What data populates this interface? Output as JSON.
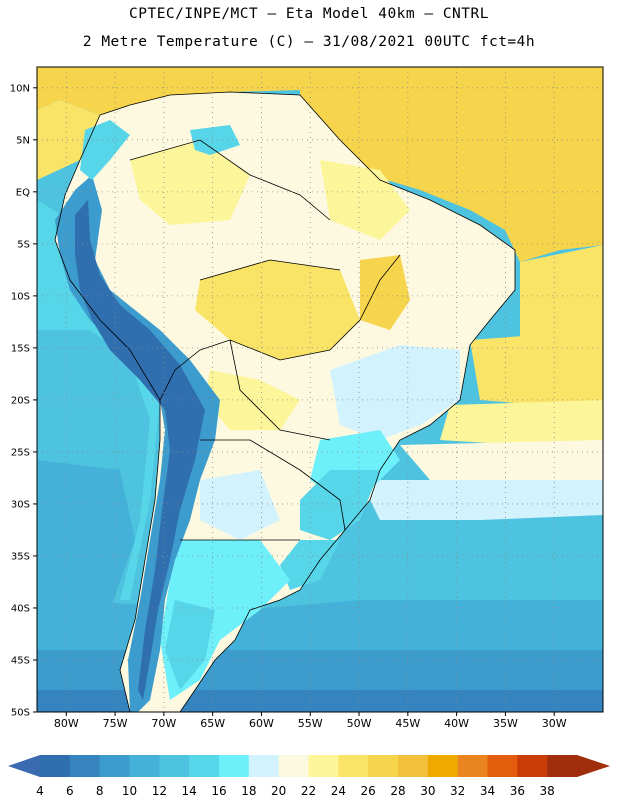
{
  "header": {
    "title_line1": "CPTEC/INPE/MCT –  Eta Model 40km – CNTRL",
    "title_line2": "2 Metre Temperature (C) – 31/08/2021 00UTC fct=4h"
  },
  "map": {
    "region": "South America",
    "lon_range": [
      -83,
      -25
    ],
    "lat_range": [
      -50,
      12
    ],
    "lat_ticks": [
      "10N",
      "5N",
      "EQ",
      "5S",
      "10S",
      "15S",
      "20S",
      "25S",
      "30S",
      "35S",
      "40S",
      "45S",
      "50S"
    ],
    "lon_ticks": [
      "80W",
      "75W",
      "70W",
      "65W",
      "60W",
      "55W",
      "50W",
      "45W",
      "40W",
      "35W",
      "30W"
    ]
  },
  "legend": {
    "labels": [
      "4",
      "6",
      "8",
      "10",
      "12",
      "14",
      "16",
      "18",
      "20",
      "22",
      "24",
      "26",
      "28",
      "30",
      "32",
      "34",
      "36",
      "38"
    ],
    "colors": [
      "#2f6fb0",
      "#3584c0",
      "#3c9ccd",
      "#44b2d8",
      "#4ec3df",
      "#57d5e9",
      "#6ef0fb",
      "#d2f3fd",
      "#fdf9e1",
      "#fdf59a",
      "#f9e468",
      "#f6d44c",
      "#f2c03a",
      "#efaa00",
      "#e9841f",
      "#e35d0d",
      "#c93c05",
      "#a02d0c"
    ],
    "low_arrow_color": "#3a6ab0",
    "high_arrow_color": "#a02d0c"
  }
}
